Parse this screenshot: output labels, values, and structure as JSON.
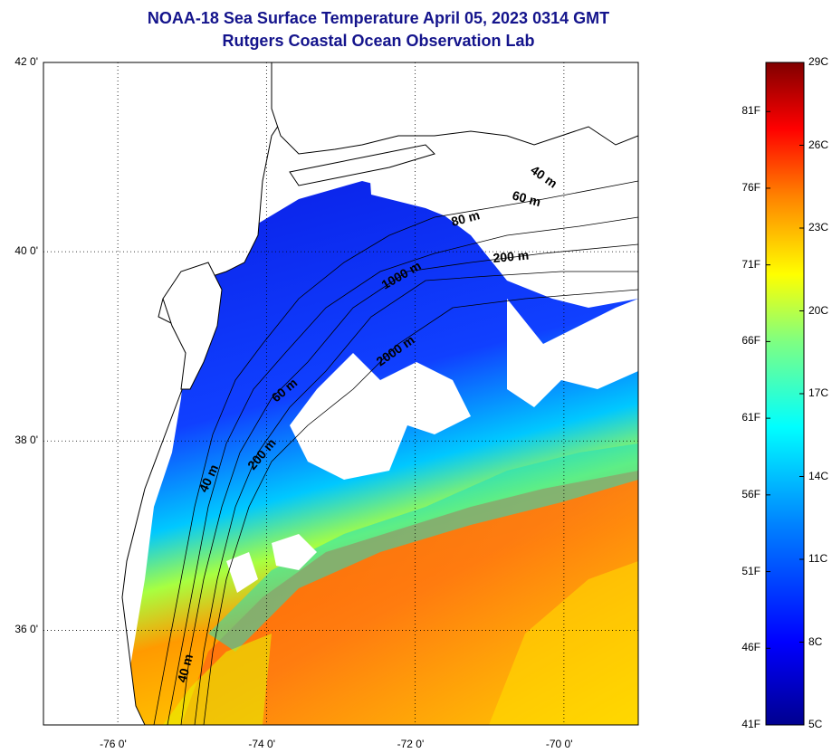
{
  "title": "NOAA-18 Sea Surface Temperature April 05, 2023 0314 GMT",
  "subtitle": "Rutgers Coastal Ocean Observation Lab",
  "map": {
    "lon_range": [
      -77,
      -69
    ],
    "lat_range": [
      35,
      42
    ],
    "lon_ticks": [
      "-76 0'",
      "-74 0'",
      "-72 0'",
      "-70 0'"
    ],
    "lat_ticks": [
      "42 0'",
      "40 0'",
      "38 0'",
      "36 0'"
    ],
    "grid": "dotted",
    "contour_labels": [
      "40 m",
      "60 m",
      "80 m",
      "200 m",
      "1000 m",
      "2000 m",
      "60 m",
      "200 m",
      "40 m",
      "40 m"
    ],
    "colors": {
      "land": "#ffffff",
      "cloud": "#ffffff",
      "coast": "#000000",
      "title": "#14148c"
    }
  },
  "colorbar": {
    "fahrenheit": [
      "81F",
      "76F",
      "71F",
      "66F",
      "61F",
      "56F",
      "51F",
      "46F",
      "41F"
    ],
    "celsius": [
      "29C",
      "26C",
      "23C",
      "20C",
      "17C",
      "14C",
      "11C",
      "8C",
      "5C"
    ],
    "range_c": [
      5,
      29
    ],
    "palette": [
      "#00008f",
      "#0000ff",
      "#0080ff",
      "#00ffff",
      "#80ff80",
      "#ffff00",
      "#ff8000",
      "#ff0000",
      "#800000"
    ]
  }
}
